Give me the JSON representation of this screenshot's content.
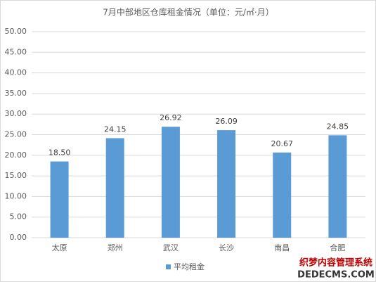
{
  "chart_data": {
    "type": "bar",
    "title": "7月中部地区仓库租金情况（单位：元/㎡·月）",
    "categories": [
      "太原",
      "郑州",
      "武汉",
      "长沙",
      "南昌",
      "合肥"
    ],
    "series": [
      {
        "name": "平均租金",
        "color": "#5b9bd5",
        "values": [
          18.5,
          24.15,
          26.92,
          26.09,
          20.67,
          24.85
        ],
        "value_labels": [
          "18.50",
          "24.15",
          "26.92",
          "26.09",
          "20.67",
          "24.85"
        ]
      }
    ],
    "ylim": [
      0,
      50
    ],
    "yticks": [
      {
        "value": 0,
        "label": "0.00"
      },
      {
        "value": 5,
        "label": "5.00"
      },
      {
        "value": 10,
        "label": "10.00"
      },
      {
        "value": 15,
        "label": "15.00"
      },
      {
        "value": 20,
        "label": "20.00"
      },
      {
        "value": 25,
        "label": "25.00"
      },
      {
        "value": 30,
        "label": "30.00"
      },
      {
        "value": 35,
        "label": "35.00"
      },
      {
        "value": 40,
        "label": "40.00"
      },
      {
        "value": 45,
        "label": "45.00"
      },
      {
        "value": 50,
        "label": "50.00"
      }
    ],
    "grid": true,
    "legend": "bottom"
  },
  "watermark": [
    "织梦内容管理系统",
    "DEDECMS.COM"
  ]
}
